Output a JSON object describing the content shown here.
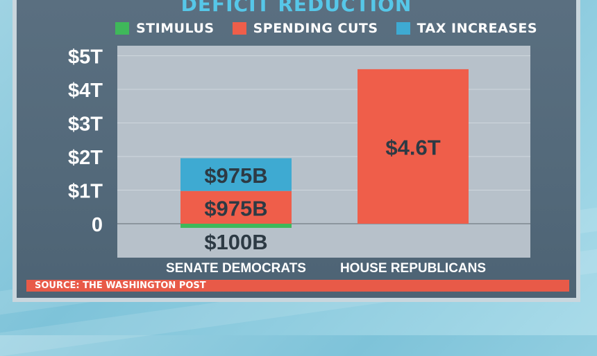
{
  "source": "SOURCE: THE WASHINGTON POST",
  "colors": {
    "stimulus": "#3fb85a",
    "spending_cuts": "#ef5e4a",
    "tax_increases": "#3eaad2"
  },
  "chart_data": {
    "type": "bar",
    "title": "DEFICIT REDUCTION",
    "legend": [
      "STIMULUS",
      "SPENDING CUTS",
      "TAX INCREASES"
    ],
    "categories": [
      "SENATE DEMOCRATS",
      "HOUSE REPUBLICANS"
    ],
    "ytick_labels": [
      "0",
      "$1T",
      "$2T",
      "$3T",
      "$4T",
      "$5T"
    ],
    "ylim": [
      -1,
      5
    ],
    "series": [
      {
        "name": "STIMULUS",
        "values": [
          -0.1,
          0
        ],
        "labels": [
          "$100B",
          ""
        ]
      },
      {
        "name": "SPENDING CUTS",
        "values": [
          0.975,
          4.6
        ],
        "labels": [
          "$975B",
          "$4.6T"
        ]
      },
      {
        "name": "TAX INCREASES",
        "values": [
          0.975,
          0
        ],
        "labels": [
          "$975B",
          ""
        ]
      }
    ]
  }
}
